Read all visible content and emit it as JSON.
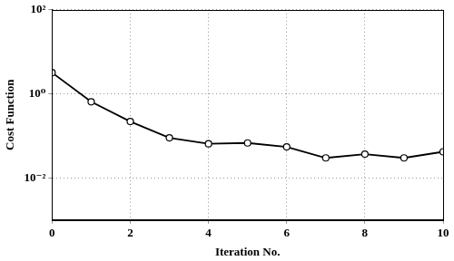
{
  "chart_data": {
    "type": "line",
    "x_label": "Iteration No.",
    "y_label": "Cost Function",
    "x": [
      0,
      1,
      2,
      3,
      4,
      5,
      6,
      7,
      8,
      9,
      10
    ],
    "series": [
      {
        "name": "Cost Function",
        "color": "#000000",
        "marker": "circle",
        "line_style": "solid",
        "values": [
          3.2,
          0.65,
          0.22,
          0.09,
          0.065,
          0.068,
          0.055,
          0.03,
          0.037,
          0.03,
          0.042
        ]
      }
    ],
    "xlim": [
      0,
      10
    ],
    "xticks": [
      0,
      2,
      4,
      6,
      8,
      10
    ],
    "ylim": [
      0.001,
      100
    ],
    "yticks": [
      {
        "value": 0.01,
        "label": "10⁻²"
      },
      {
        "value": 1,
        "label": "10⁰"
      },
      {
        "value": 100,
        "label": "10²"
      }
    ],
    "log": "y",
    "grid": true
  }
}
